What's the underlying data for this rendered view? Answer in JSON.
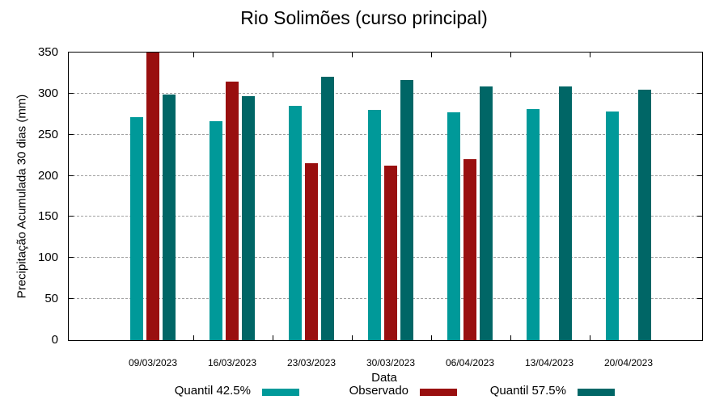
{
  "chart_data": {
    "type": "bar",
    "title": "Rio Solimões (curso principal)",
    "xlabel": "Data",
    "ylabel": "Precipitação Acumulada 30 dias (mm)",
    "ylim": [
      0,
      350
    ],
    "yticks": [
      0,
      50,
      100,
      150,
      200,
      250,
      300,
      350
    ],
    "grid": true,
    "legend_position": "bottom",
    "categories": [
      "09/03/2023",
      "16/03/2023",
      "23/03/2023",
      "30/03/2023",
      "06/04/2023",
      "13/04/2023",
      "20/04/2023"
    ],
    "series": [
      {
        "name": "Quantil 42.5%",
        "color": "#009999",
        "values": [
          271,
          266,
          285,
          280,
          277,
          281,
          278
        ]
      },
      {
        "name": "Observado",
        "color": "#990f0f",
        "values": [
          350,
          315,
          215,
          212,
          220,
          null,
          null
        ]
      },
      {
        "name": "Quantil 57.5%",
        "color": "#006666",
        "values": [
          299,
          297,
          321,
          317,
          309,
          309,
          305
        ]
      }
    ]
  },
  "labels": {
    "title": "Rio Solimões (curso principal)",
    "xlabel": "Data",
    "ylabel": "Precipitação Acumulada 30 dias (mm)",
    "yticks": [
      "0",
      "50",
      "100",
      "150",
      "200",
      "250",
      "300",
      "350"
    ],
    "xticks": [
      "09/03/2023",
      "16/03/2023",
      "23/03/2023",
      "30/03/2023",
      "06/04/2023",
      "13/04/2023",
      "20/04/2023"
    ],
    "legend": [
      "Quantil 42.5%",
      "Observado",
      "Quantil 57.5%"
    ]
  }
}
